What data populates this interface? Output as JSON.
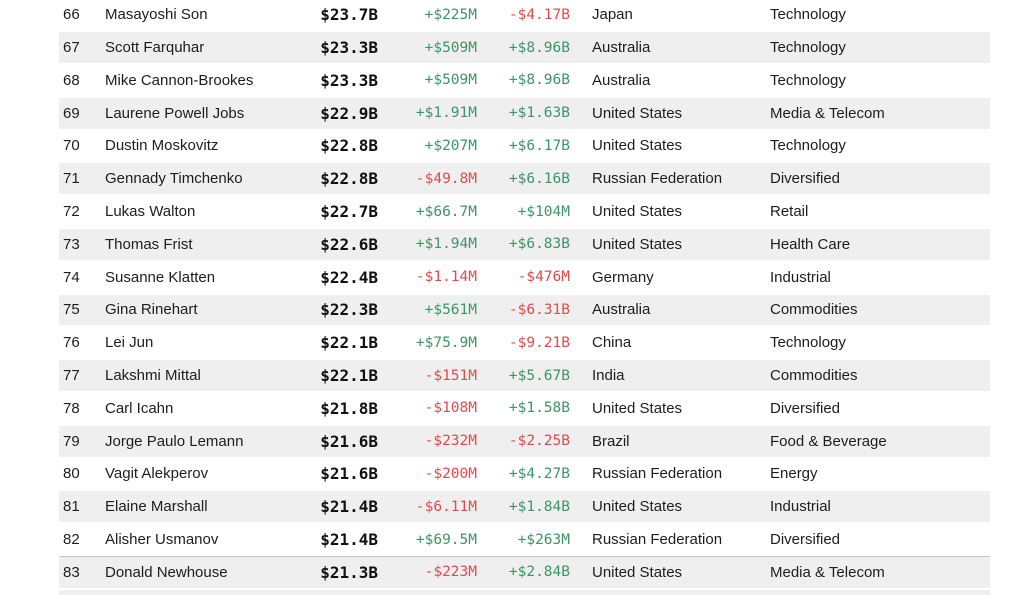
{
  "colors": {
    "text": "#1d1d1d",
    "net_worth_text": "#111111",
    "positive": "#3e9467",
    "negative": "#e04b4d",
    "row_alt": "#efefef",
    "separator": "#c5c5c5"
  },
  "table": {
    "rows": [
      {
        "rank": "66",
        "name": "Masayoshi Son",
        "net_worth": "$23.7B",
        "daily_change": "+$225M",
        "ytd_change": "-$4.17B",
        "country": "Japan",
        "industry": "Technology"
      },
      {
        "rank": "67",
        "name": "Scott Farquhar",
        "net_worth": "$23.3B",
        "daily_change": "+$509M",
        "ytd_change": "+$8.96B",
        "country": "Australia",
        "industry": "Technology"
      },
      {
        "rank": "68",
        "name": "Mike Cannon-Brookes",
        "net_worth": "$23.3B",
        "daily_change": "+$509M",
        "ytd_change": "+$8.96B",
        "country": "Australia",
        "industry": "Technology"
      },
      {
        "rank": "69",
        "name": "Laurene Powell Jobs",
        "net_worth": "$22.9B",
        "daily_change": "+$1.91M",
        "ytd_change": "+$1.63B",
        "country": "United States",
        "industry": "Media & Telecom"
      },
      {
        "rank": "70",
        "name": "Dustin Moskovitz",
        "net_worth": "$22.8B",
        "daily_change": "+$207M",
        "ytd_change": "+$6.17B",
        "country": "United States",
        "industry": "Technology"
      },
      {
        "rank": "71",
        "name": "Gennady Timchenko",
        "net_worth": "$22.8B",
        "daily_change": "-$49.8M",
        "ytd_change": "+$6.16B",
        "country": "Russian Federation",
        "industry": "Diversified"
      },
      {
        "rank": "72",
        "name": "Lukas Walton",
        "net_worth": "$22.7B",
        "daily_change": "+$66.7M",
        "ytd_change": "+$104M",
        "country": "United States",
        "industry": "Retail"
      },
      {
        "rank": "73",
        "name": "Thomas Frist",
        "net_worth": "$22.6B",
        "daily_change": "+$1.94M",
        "ytd_change": "+$6.83B",
        "country": "United States",
        "industry": "Health Care"
      },
      {
        "rank": "74",
        "name": "Susanne Klatten",
        "net_worth": "$22.4B",
        "daily_change": "-$1.14M",
        "ytd_change": "-$476M",
        "country": "Germany",
        "industry": "Industrial"
      },
      {
        "rank": "75",
        "name": "Gina Rinehart",
        "net_worth": "$22.3B",
        "daily_change": "+$561M",
        "ytd_change": "-$6.31B",
        "country": "Australia",
        "industry": "Commodities"
      },
      {
        "rank": "76",
        "name": "Lei Jun",
        "net_worth": "$22.1B",
        "daily_change": "+$75.9M",
        "ytd_change": "-$9.21B",
        "country": "China",
        "industry": "Technology"
      },
      {
        "rank": "77",
        "name": "Lakshmi Mittal",
        "net_worth": "$22.1B",
        "daily_change": "-$151M",
        "ytd_change": "+$5.67B",
        "country": "India",
        "industry": "Commodities"
      },
      {
        "rank": "78",
        "name": "Carl Icahn",
        "net_worth": "$21.8B",
        "daily_change": "-$108M",
        "ytd_change": "+$1.58B",
        "country": "United States",
        "industry": "Diversified"
      },
      {
        "rank": "79",
        "name": "Jorge Paulo Lemann",
        "net_worth": "$21.6B",
        "daily_change": "-$232M",
        "ytd_change": "-$2.25B",
        "country": "Brazil",
        "industry": "Food & Beverage"
      },
      {
        "rank": "80",
        "name": "Vagit Alekperov",
        "net_worth": "$21.6B",
        "daily_change": "-$200M",
        "ytd_change": "+$4.27B",
        "country": "Russian Federation",
        "industry": "Energy"
      },
      {
        "rank": "81",
        "name": "Elaine Marshall",
        "net_worth": "$21.4B",
        "daily_change": "-$6.11M",
        "ytd_change": "+$1.84B",
        "country": "United States",
        "industry": "Industrial"
      },
      {
        "rank": "82",
        "name": "Alisher Usmanov",
        "net_worth": "$21.4B",
        "daily_change": "+$69.5M",
        "ytd_change": "+$263M",
        "country": "Russian Federation",
        "industry": "Diversified"
      },
      {
        "rank": "83",
        "name": "Donald Newhouse",
        "net_worth": "$21.3B",
        "daily_change": "-$223M",
        "ytd_change": "+$2.84B",
        "country": "United States",
        "industry": "Media & Telecom"
      }
    ]
  }
}
